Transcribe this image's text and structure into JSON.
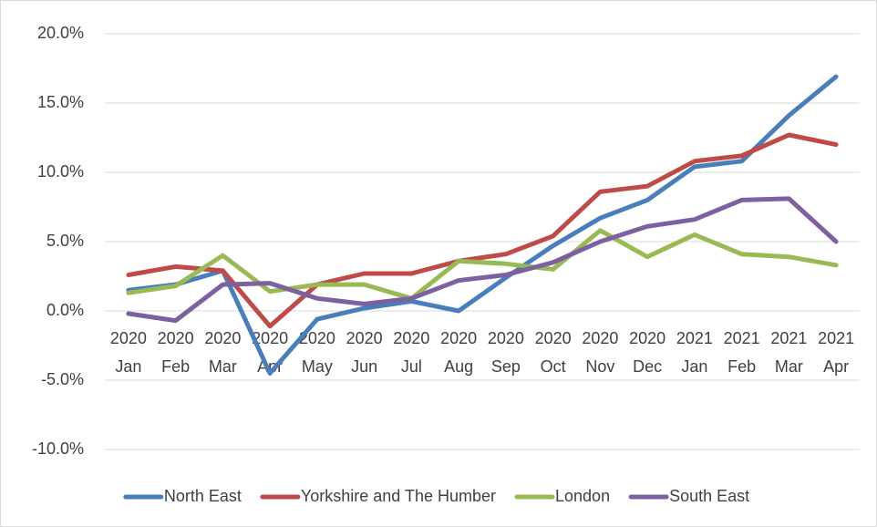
{
  "chart_data": {
    "type": "line",
    "categories": [
      [
        "2020",
        "Jan"
      ],
      [
        "2020",
        "Feb"
      ],
      [
        "2020",
        "Mar"
      ],
      [
        "2020",
        "Apr"
      ],
      [
        "2020",
        "May"
      ],
      [
        "2020",
        "Jun"
      ],
      [
        "2020",
        "Jul"
      ],
      [
        "2020",
        "Aug"
      ],
      [
        "2020",
        "Sep"
      ],
      [
        "2020",
        "Oct"
      ],
      [
        "2020",
        "Nov"
      ],
      [
        "2020",
        "Dec"
      ],
      [
        "2021",
        "Jan"
      ],
      [
        "2021",
        "Feb"
      ],
      [
        "2021",
        "Mar"
      ],
      [
        "2021",
        "Apr"
      ]
    ],
    "series": [
      {
        "name": "North East",
        "color": "#4a7ebb",
        "values": [
          1.5,
          1.9,
          2.9,
          -4.5,
          -0.6,
          0.2,
          0.7,
          0.0,
          2.4,
          4.7,
          6.7,
          8.0,
          10.4,
          10.8,
          14.1,
          16.9
        ]
      },
      {
        "name": "Yorkshire and The Humber",
        "color": "#be4b48",
        "values": [
          2.6,
          3.2,
          2.9,
          -1.1,
          1.9,
          2.7,
          2.7,
          3.6,
          4.1,
          5.4,
          8.6,
          9.0,
          10.8,
          11.2,
          12.7,
          12.0
        ]
      },
      {
        "name": "London",
        "color": "#98b954",
        "values": [
          1.3,
          1.8,
          4.0,
          1.4,
          1.9,
          1.9,
          0.9,
          3.6,
          3.4,
          3.0,
          5.8,
          3.9,
          5.5,
          4.1,
          3.9,
          3.3
        ]
      },
      {
        "name": "South East",
        "color": "#7d60a0",
        "values": [
          -0.2,
          -0.7,
          1.9,
          2.0,
          0.9,
          0.5,
          0.9,
          2.2,
          2.6,
          3.5,
          5.0,
          6.1,
          6.6,
          8.0,
          8.1,
          5.0
        ]
      }
    ],
    "ylim": [
      -10,
      20
    ],
    "yticks": [
      {
        "value": -10,
        "label": "-10.0%"
      },
      {
        "value": -5,
        "label": "-5.0%"
      },
      {
        "value": 0,
        "label": "0.0%"
      },
      {
        "value": 5,
        "label": "5.0%"
      },
      {
        "value": 10,
        "label": "10.0%"
      },
      {
        "value": 15,
        "label": "15.0%"
      },
      {
        "value": 20,
        "label": "20.0%"
      }
    ],
    "grid": true,
    "legend": "bottom"
  }
}
